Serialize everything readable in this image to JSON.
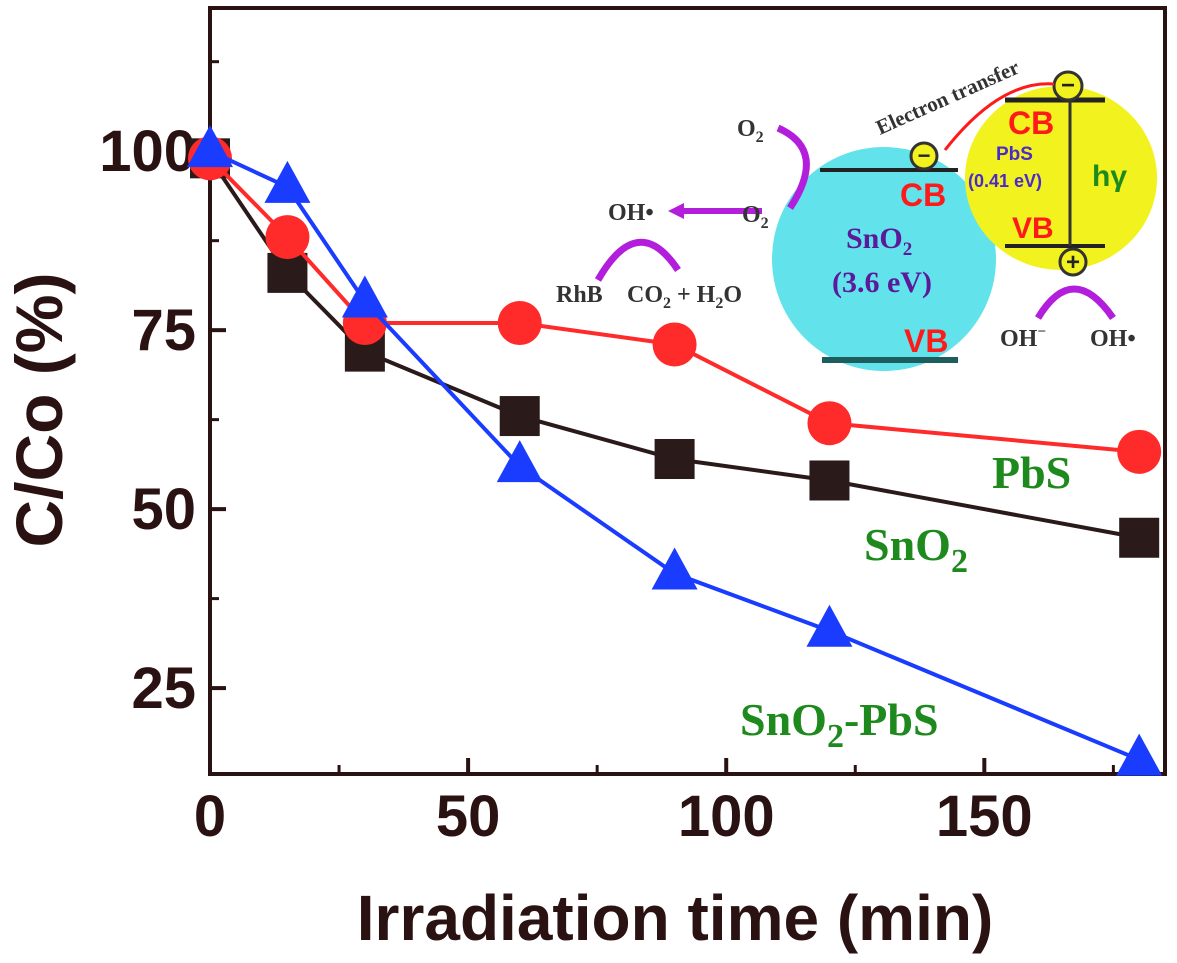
{
  "chart_data": {
    "type": "line",
    "xlabel": "Irradiation time (min)",
    "ylabel": "C/Co (%)",
    "xlim": [
      0,
      185
    ],
    "ylim": [
      13,
      120
    ],
    "x_ticks": [
      0,
      50,
      100,
      150
    ],
    "y_ticks": [
      25,
      50,
      75,
      100
    ],
    "grid": false,
    "series": [
      {
        "name": "PbS",
        "color": "#ff2a2a",
        "marker": "circle",
        "x": [
          0,
          15,
          30,
          60,
          90,
          120,
          180
        ],
        "y": [
          99,
          88,
          76,
          76,
          73,
          62,
          58
        ]
      },
      {
        "name": "SnO2",
        "color": "#2a1a1a",
        "marker": "square",
        "x": [
          0,
          15,
          30,
          60,
          90,
          120,
          180
        ],
        "y": [
          99,
          83,
          72,
          63,
          57,
          54,
          46
        ]
      },
      {
        "name": "SnO2-PbS",
        "color": "#1a3cff",
        "marker": "triangle",
        "x": [
          0,
          15,
          30,
          60,
          90,
          120,
          180
        ],
        "y": [
          100,
          95,
          79,
          56,
          41,
          33,
          15
        ]
      }
    ],
    "series_labels": {
      "pbs": "PbS",
      "sno2": "SnO",
      "sno2_sub": "2",
      "composite": "SnO",
      "composite_sub": "2",
      "composite_suffix": "-PbS"
    },
    "inset": {
      "electron_transfer": "Electron transfer",
      "o2_top": "O",
      "o2_top_sub": "2",
      "o2_mid": "O",
      "o2_mid_sub": "2",
      "oh_radical": "OH•",
      "rhb": "RhB",
      "products": "CO",
      "products_sub": "2",
      "products_suffix": " + H",
      "products_sub2": "2",
      "products_end": "O",
      "sno2_name": "SnO",
      "sno2_name_sub": "2",
      "sno2_gap": "(3.6 eV)",
      "sno2_cb": "CB",
      "sno2_vb": "VB",
      "pbs_name": "PbS",
      "pbs_gap": "(0.41 eV)",
      "pbs_cb": "CB",
      "pbs_vb": "VB",
      "light": "hγ",
      "oh_minus": "OH",
      "oh_minus_sup": "−",
      "oh_radical_2": "OH•",
      "electron_sign": "−",
      "hole_sign": "+",
      "sno2_color": "#62e3ec",
      "pbs_color": "#f2f21e",
      "band_label_color": "#ff1a1a",
      "arrow_color": "#b21edc"
    }
  }
}
